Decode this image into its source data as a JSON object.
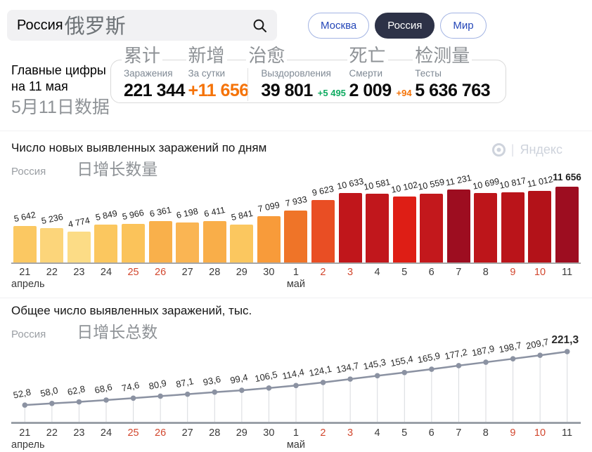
{
  "search": {
    "value": "Россия",
    "value_zh": "俄罗斯"
  },
  "tabs": [
    {
      "label": "Москва",
      "active": false
    },
    {
      "label": "Россия",
      "active": true
    },
    {
      "label": "Мир",
      "active": false
    }
  ],
  "stats": {
    "heading_line1": "Главные цифры",
    "heading_line2": "на 11 мая",
    "heading_zh": "5月11日数据",
    "items": [
      {
        "zh": "累计",
        "label": "Заражения",
        "value": "221 344"
      },
      {
        "zh": "新增",
        "label": "За сутки",
        "value": "+11 656"
      },
      {
        "zh": "治愈",
        "label": "Выздоровления",
        "value": "39 801",
        "delta": "+5 495"
      },
      {
        "zh": "死亡",
        "label": "Смерти",
        "value": "2 009",
        "delta": "+94"
      },
      {
        "zh": "检测量",
        "label": "Тесты",
        "value": "5 636 763"
      }
    ]
  },
  "brand": {
    "divider": "|",
    "name": "Яндекс"
  },
  "colors": {
    "accent_orange": "#f57308",
    "delta_green": "#0fab61",
    "weekend_red": "#d2472e",
    "active_tab_bg": "#2d3247",
    "line_gray": "#8b92a2"
  },
  "chart_data": [
    {
      "type": "bar",
      "title": "Число новых выявленных заражений по дням",
      "subtitle": "Россия",
      "subtitle_zh": "日增长数量",
      "categories": [
        "21",
        "22",
        "23",
        "24",
        "25",
        "26",
        "27",
        "28",
        "29",
        "30",
        "1",
        "2",
        "3",
        "4",
        "5",
        "6",
        "7",
        "8",
        "9",
        "10",
        "11"
      ],
      "month_labels": {
        "0": "апрель",
        "10": "май"
      },
      "weekend_indices": [
        4,
        5,
        11,
        12,
        18,
        19
      ],
      "values": [
        5642,
        5236,
        4774,
        5849,
        5966,
        6361,
        6198,
        6411,
        5841,
        7099,
        7933,
        9623,
        10633,
        10581,
        10102,
        10559,
        11231,
        10699,
        10817,
        11012,
        11656
      ],
      "value_labels": [
        "5 642",
        "5 236",
        "4 774",
        "5 849",
        "5 966",
        "6 361",
        "6 198",
        "6 411",
        "5 841",
        "7 099",
        "7 933",
        "9 623",
        "10 633",
        "10 581",
        "10 102",
        "10 559",
        "11 231",
        "10 699",
        "10 817",
        "11 012",
        "11 656"
      ],
      "bar_colors": [
        "#fbc862",
        "#fcd57a",
        "#fcdc86",
        "#fbc75f",
        "#fbc35a",
        "#f9b04b",
        "#fab553",
        "#f9ae49",
        "#fbc75f",
        "#f89b3a",
        "#ef7428",
        "#e94e24",
        "#c0161b",
        "#c1171c",
        "#de1e15",
        "#c3181c",
        "#9d0d20",
        "#bd151a",
        "#ba141a",
        "#b31219",
        "#9d0d20"
      ],
      "ylim": [
        0,
        11656
      ],
      "grid": false,
      "legend": "none"
    },
    {
      "type": "line",
      "title": "Общее число выявленных заражений, тыс.",
      "subtitle": "Россия",
      "subtitle_zh": "日增长总数",
      "categories": [
        "21",
        "22",
        "23",
        "24",
        "25",
        "26",
        "27",
        "28",
        "29",
        "30",
        "1",
        "2",
        "3",
        "4",
        "5",
        "6",
        "7",
        "8",
        "9",
        "10",
        "11"
      ],
      "month_labels": {
        "0": "апрель",
        "10": "май"
      },
      "weekend_indices": [
        4,
        5,
        11,
        12,
        18,
        19
      ],
      "values": [
        52.8,
        58.0,
        62.8,
        68.6,
        74.6,
        80.9,
        87.1,
        93.6,
        99.4,
        106.5,
        114.4,
        124.1,
        134.7,
        145.3,
        155.4,
        165.9,
        177.2,
        187.9,
        198.7,
        209.7,
        221.3
      ],
      "value_labels": [
        "52,8",
        "58,0",
        "62,8",
        "68,6",
        "74,6",
        "80,9",
        "87,1",
        "93,6",
        "99,4",
        "106,5",
        "114,4",
        "124,1",
        "134,7",
        "145,3",
        "155,4",
        "165,9",
        "177,2",
        "187,9",
        "198,7",
        "209,7",
        "221,3"
      ],
      "line_color": "#8b92a2",
      "ylim": [
        0,
        230
      ],
      "grid": false,
      "legend": "none"
    }
  ]
}
